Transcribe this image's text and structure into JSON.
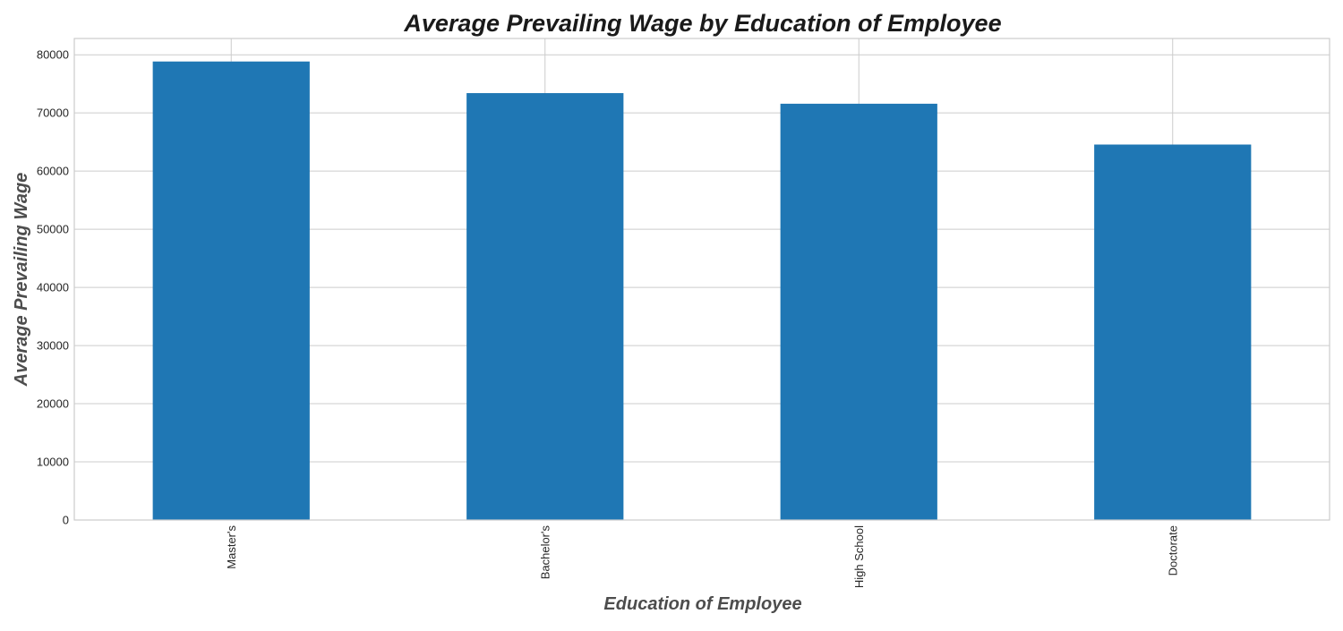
{
  "chart_data": {
    "type": "bar",
    "title": "Average Prevailing Wage by Education of Employee",
    "xlabel": "Education of Employee",
    "ylabel": "Average Prevailing Wage",
    "categories": [
      "Master's",
      "Bachelor's",
      "High School",
      "Doctorate"
    ],
    "values": [
      78843,
      73406,
      71582,
      64562
    ],
    "ylim": [
      0,
      82800
    ],
    "yticks": [
      0,
      10000,
      20000,
      30000,
      40000,
      50000,
      60000,
      70000,
      80000
    ],
    "yticks_labels": [
      "0",
      "10000",
      "20000",
      "30000",
      "40000",
      "50000",
      "60000",
      "70000",
      "80000"
    ],
    "grid": true,
    "bar_color": "#1f77b4",
    "x_tick_rotation": "vertical"
  }
}
